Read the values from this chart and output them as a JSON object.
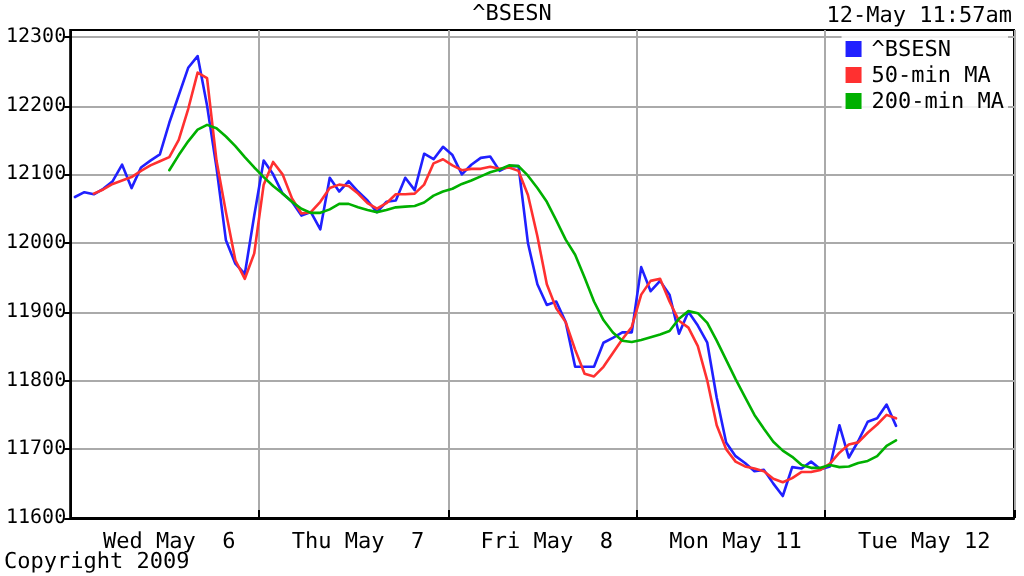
{
  "chart_data": {
    "type": "line",
    "title": "^BSESN",
    "annotations": [
      "12-May 11:57am",
      "Copyright 2009"
    ],
    "categories": [
      null,
      null,
      null,
      null,
      null,
      null,
      null,
      null,
      null,
      null,
      "Wed May  6",
      null,
      null,
      null,
      null,
      null,
      null,
      null,
      null,
      null,
      null,
      null,
      null,
      null,
      null,
      null,
      null,
      null,
      null,
      null,
      "Thu May  7",
      null,
      null,
      null,
      null,
      null,
      null,
      null,
      null,
      null,
      null,
      null,
      null,
      null,
      null,
      null,
      null,
      null,
      null,
      null,
      "Fri May  8",
      null,
      null,
      null,
      null,
      null,
      null,
      null,
      null,
      null,
      null,
      null,
      null,
      null,
      null,
      null,
      null,
      null,
      null,
      null,
      "Mon May 11",
      null,
      null,
      null,
      null,
      null,
      null,
      null,
      null,
      null,
      null,
      null,
      null,
      null,
      null,
      null,
      null,
      null,
      null,
      null,
      "Tue May 12",
      null,
      null,
      null,
      null,
      null,
      null,
      null,
      null,
      null
    ],
    "ylim": [
      11600,
      12310
    ],
    "yticks": [
      11600,
      11700,
      11800,
      11900,
      12000,
      12100,
      12200,
      12300
    ],
    "grid": true,
    "legend": "top right",
    "marker": "none",
    "line_style": "solid",
    "series": [
      {
        "name": "^BSESN",
        "color": "#2020ff",
        "values": [
          12067,
          12074,
          12071,
          12079,
          12090,
          12114,
          12080,
          12110,
          12120,
          12129,
          12175,
          12215,
          12255,
          12272,
          12200,
          12110,
          12004,
          11970,
          11955,
          12040,
          12120,
          12100,
          12072,
          12060,
          12040,
          12045,
          12020,
          12095,
          12075,
          12090,
          12075,
          12062,
          12045,
          12060,
          12062,
          12095,
          12077,
          12130,
          12122,
          12140,
          12128,
          12100,
          12114,
          12124,
          12126,
          12105,
          12112,
          12112,
          12000,
          11940,
          11910,
          11915,
          11885,
          11820,
          11820,
          11820,
          11855,
          11862,
          11870,
          11870,
          11965,
          11930,
          11945,
          11925,
          11868,
          11900,
          11880,
          11855,
          11775,
          11710,
          11690,
          11680,
          11668,
          11670,
          11650,
          11632,
          11674,
          11672,
          11682,
          11671,
          11675,
          11735,
          11688,
          11712,
          11740,
          11745,
          11765,
          11734,
          null,
          null,
          null,
          null,
          null,
          null,
          null,
          null,
          null,
          null,
          null,
          null
        ]
      },
      {
        "name": "50-min MA",
        "color": "#ff3030",
        "values": [
          null,
          null,
          12072,
          12078,
          12086,
          12091,
          12096,
          12105,
          12113,
          12119,
          12125,
          12150,
          12195,
          12248,
          12240,
          12120,
          12045,
          11975,
          11948,
          11985,
          12085,
          12118,
          12100,
          12065,
          12043,
          12045,
          12060,
          12080,
          12085,
          12083,
          12072,
          12058,
          12050,
          12058,
          12071,
          12071,
          12072,
          12085,
          12116,
          12122,
          12113,
          12106,
          12108,
          12108,
          12111,
          12108,
          12110,
          12105,
          12070,
          12010,
          11940,
          11905,
          11885,
          11845,
          11810,
          11806,
          11820,
          11840,
          11860,
          11878,
          11925,
          11945,
          11948,
          11915,
          11887,
          11877,
          11850,
          11800,
          11735,
          11700,
          11682,
          11675,
          11672,
          11668,
          11657,
          11652,
          11658,
          11667,
          11667,
          11670,
          11679,
          11695,
          11707,
          11710,
          11724,
          11736,
          11750,
          11745,
          null,
          null,
          null,
          null,
          null,
          null,
          null,
          null,
          null,
          null,
          null,
          null
        ]
      },
      {
        "name": "200-min MA",
        "color": "#00b000",
        "values": [
          null,
          null,
          null,
          null,
          null,
          null,
          null,
          null,
          null,
          null,
          12106,
          12128,
          12148,
          12165,
          12172,
          12167,
          12155,
          12141,
          12125,
          12110,
          12096,
          12083,
          12072,
          12060,
          12050,
          12044,
          12044,
          12049,
          12057,
          12057,
          12052,
          12048,
          12045,
          12048,
          12052,
          12053,
          12054,
          12059,
          12069,
          12075,
          12079,
          12086,
          12091,
          12097,
          12103,
          12107,
          12113,
          12112,
          12098,
          12080,
          12060,
          12033,
          12005,
          11983,
          11950,
          11915,
          11888,
          11870,
          11858,
          11856,
          11859,
          11863,
          11867,
          11872,
          11890,
          11901,
          11898,
          11884,
          11858,
          11830,
          11802,
          11776,
          11750,
          11730,
          11711,
          11698,
          11689,
          11677,
          11673,
          11673,
          11677,
          11674,
          11675,
          11680,
          11683,
          11690,
          11705,
          11713,
          null,
          null,
          null,
          null,
          null,
          null,
          null,
          null,
          null,
          null,
          null,
          null
        ]
      }
    ]
  }
}
